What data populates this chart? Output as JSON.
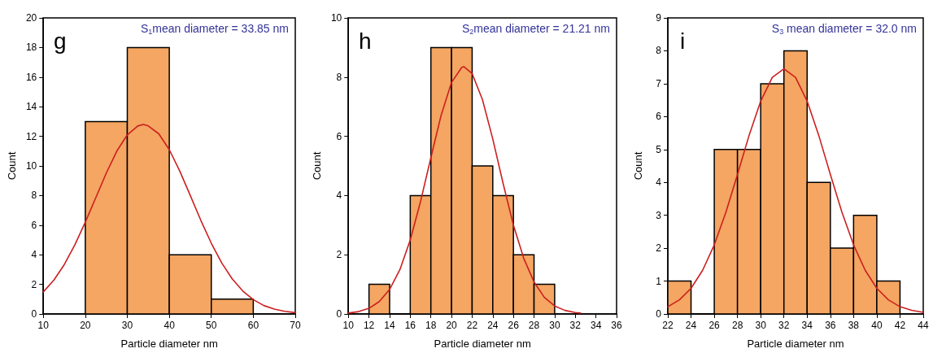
{
  "chart_data": [
    {
      "type": "histogram",
      "xlabel": "Particle diameter nm",
      "ylabel": "Count",
      "annotations": [
        "g",
        "S$_{1}$mean diameter = 33.85 nm"
      ],
      "xlim": [
        10,
        70
      ],
      "xticks": [
        10,
        20,
        30,
        40,
        50,
        60,
        70
      ],
      "ylim": [
        0,
        20
      ],
      "yticks": [
        0,
        2,
        4,
        6,
        8,
        10,
        12,
        14,
        16,
        18,
        20
      ],
      "grid": false,
      "series": [
        {
          "color": "#f4a662",
          "bins": [
            20,
            30,
            40,
            50,
            60
          ],
          "values": [
            13,
            18,
            4,
            1
          ]
        },
        {
          "type": "line",
          "color": "#cc1f1f",
          "marker": "none",
          "x": [
            10,
            12.5,
            15,
            17.5,
            20,
            22.5,
            25,
            27.5,
            30,
            32.5,
            33.85,
            35,
            37.5,
            40,
            42.5,
            45,
            47.5,
            50,
            52.5,
            55,
            57.5,
            60,
            62.5,
            65,
            67.5,
            70
          ],
          "values": [
            1.49,
            2.28,
            3.34,
            4.66,
            6.2,
            7.86,
            9.52,
            11.0,
            12.1,
            12.7,
            12.8,
            12.7,
            12.17,
            11.1,
            9.65,
            8.0,
            6.33,
            4.78,
            3.44,
            2.36,
            1.55,
            0.97,
            0.57,
            0.33,
            0.18,
            0.09
          ]
        }
      ]
    },
    {
      "type": "histogram",
      "xlabel": "Particle diameter nm",
      "ylabel": "Count",
      "annotations": [
        "h",
        "S$_{2}$mean diameter = 21.21 nm"
      ],
      "xlim": [
        10,
        36
      ],
      "xticks": [
        10,
        12,
        14,
        16,
        18,
        20,
        22,
        24,
        26,
        28,
        30,
        32,
        34,
        36
      ],
      "ylim": [
        0,
        10
      ],
      "yticks": [
        0,
        2,
        4,
        6,
        8,
        10
      ],
      "grid": false,
      "series": [
        {
          "color": "#f4a662",
          "bins": [
            12,
            14,
            16,
            18,
            20,
            22,
            24,
            26,
            28,
            30
          ],
          "values": [
            1,
            0,
            4,
            9,
            9,
            5,
            4,
            2,
            1
          ]
        },
        {
          "type": "line",
          "color": "#cc1f1f",
          "marker": "none",
          "x": [
            10,
            11,
            12,
            13,
            14,
            15,
            16,
            17,
            18,
            19,
            20,
            21,
            21.21,
            22,
            23,
            24,
            25,
            26,
            27,
            28,
            29,
            30,
            31,
            32,
            32.5
          ],
          "values": [
            0.03,
            0.08,
            0.19,
            0.42,
            0.83,
            1.5,
            2.5,
            3.8,
            5.28,
            6.72,
            7.82,
            8.33,
            8.35,
            8.12,
            7.24,
            5.91,
            4.41,
            3.0,
            1.88,
            1.08,
            0.56,
            0.27,
            0.12,
            0.05,
            0.03
          ]
        }
      ]
    },
    {
      "type": "histogram",
      "xlabel": "Particle diameter nm",
      "ylabel": "Count",
      "annotations": [
        "i",
        "S$_{3}$ mean diameter = 32.0 nm"
      ],
      "xlim": [
        22,
        44
      ],
      "xticks": [
        22,
        24,
        26,
        28,
        30,
        32,
        34,
        36,
        38,
        40,
        42,
        44
      ],
      "ylim": [
        0,
        9
      ],
      "yticks": [
        0,
        1,
        2,
        3,
        4,
        5,
        6,
        7,
        8,
        9
      ],
      "grid": false,
      "series": [
        {
          "color": "#f4a662",
          "bins": [
            22,
            24,
            26,
            28,
            30,
            32,
            34,
            36,
            38,
            40,
            42
          ],
          "values": [
            1,
            0,
            5,
            5,
            7,
            8,
            4,
            2,
            3,
            1
          ]
        },
        {
          "type": "line",
          "color": "#cc1f1f",
          "marker": "none",
          "x": [
            22,
            23,
            24,
            25,
            26,
            27,
            28,
            29,
            30,
            31,
            32,
            33,
            34,
            35,
            36,
            37,
            38,
            39,
            40,
            41,
            42,
            43,
            44
          ],
          "values": [
            0.22,
            0.43,
            0.78,
            1.33,
            2.1,
            3.09,
            4.24,
            5.43,
            6.47,
            7.19,
            7.45,
            7.19,
            6.47,
            5.43,
            4.24,
            3.09,
            2.1,
            1.33,
            0.78,
            0.43,
            0.22,
            0.11,
            0.05
          ]
        }
      ]
    }
  ]
}
